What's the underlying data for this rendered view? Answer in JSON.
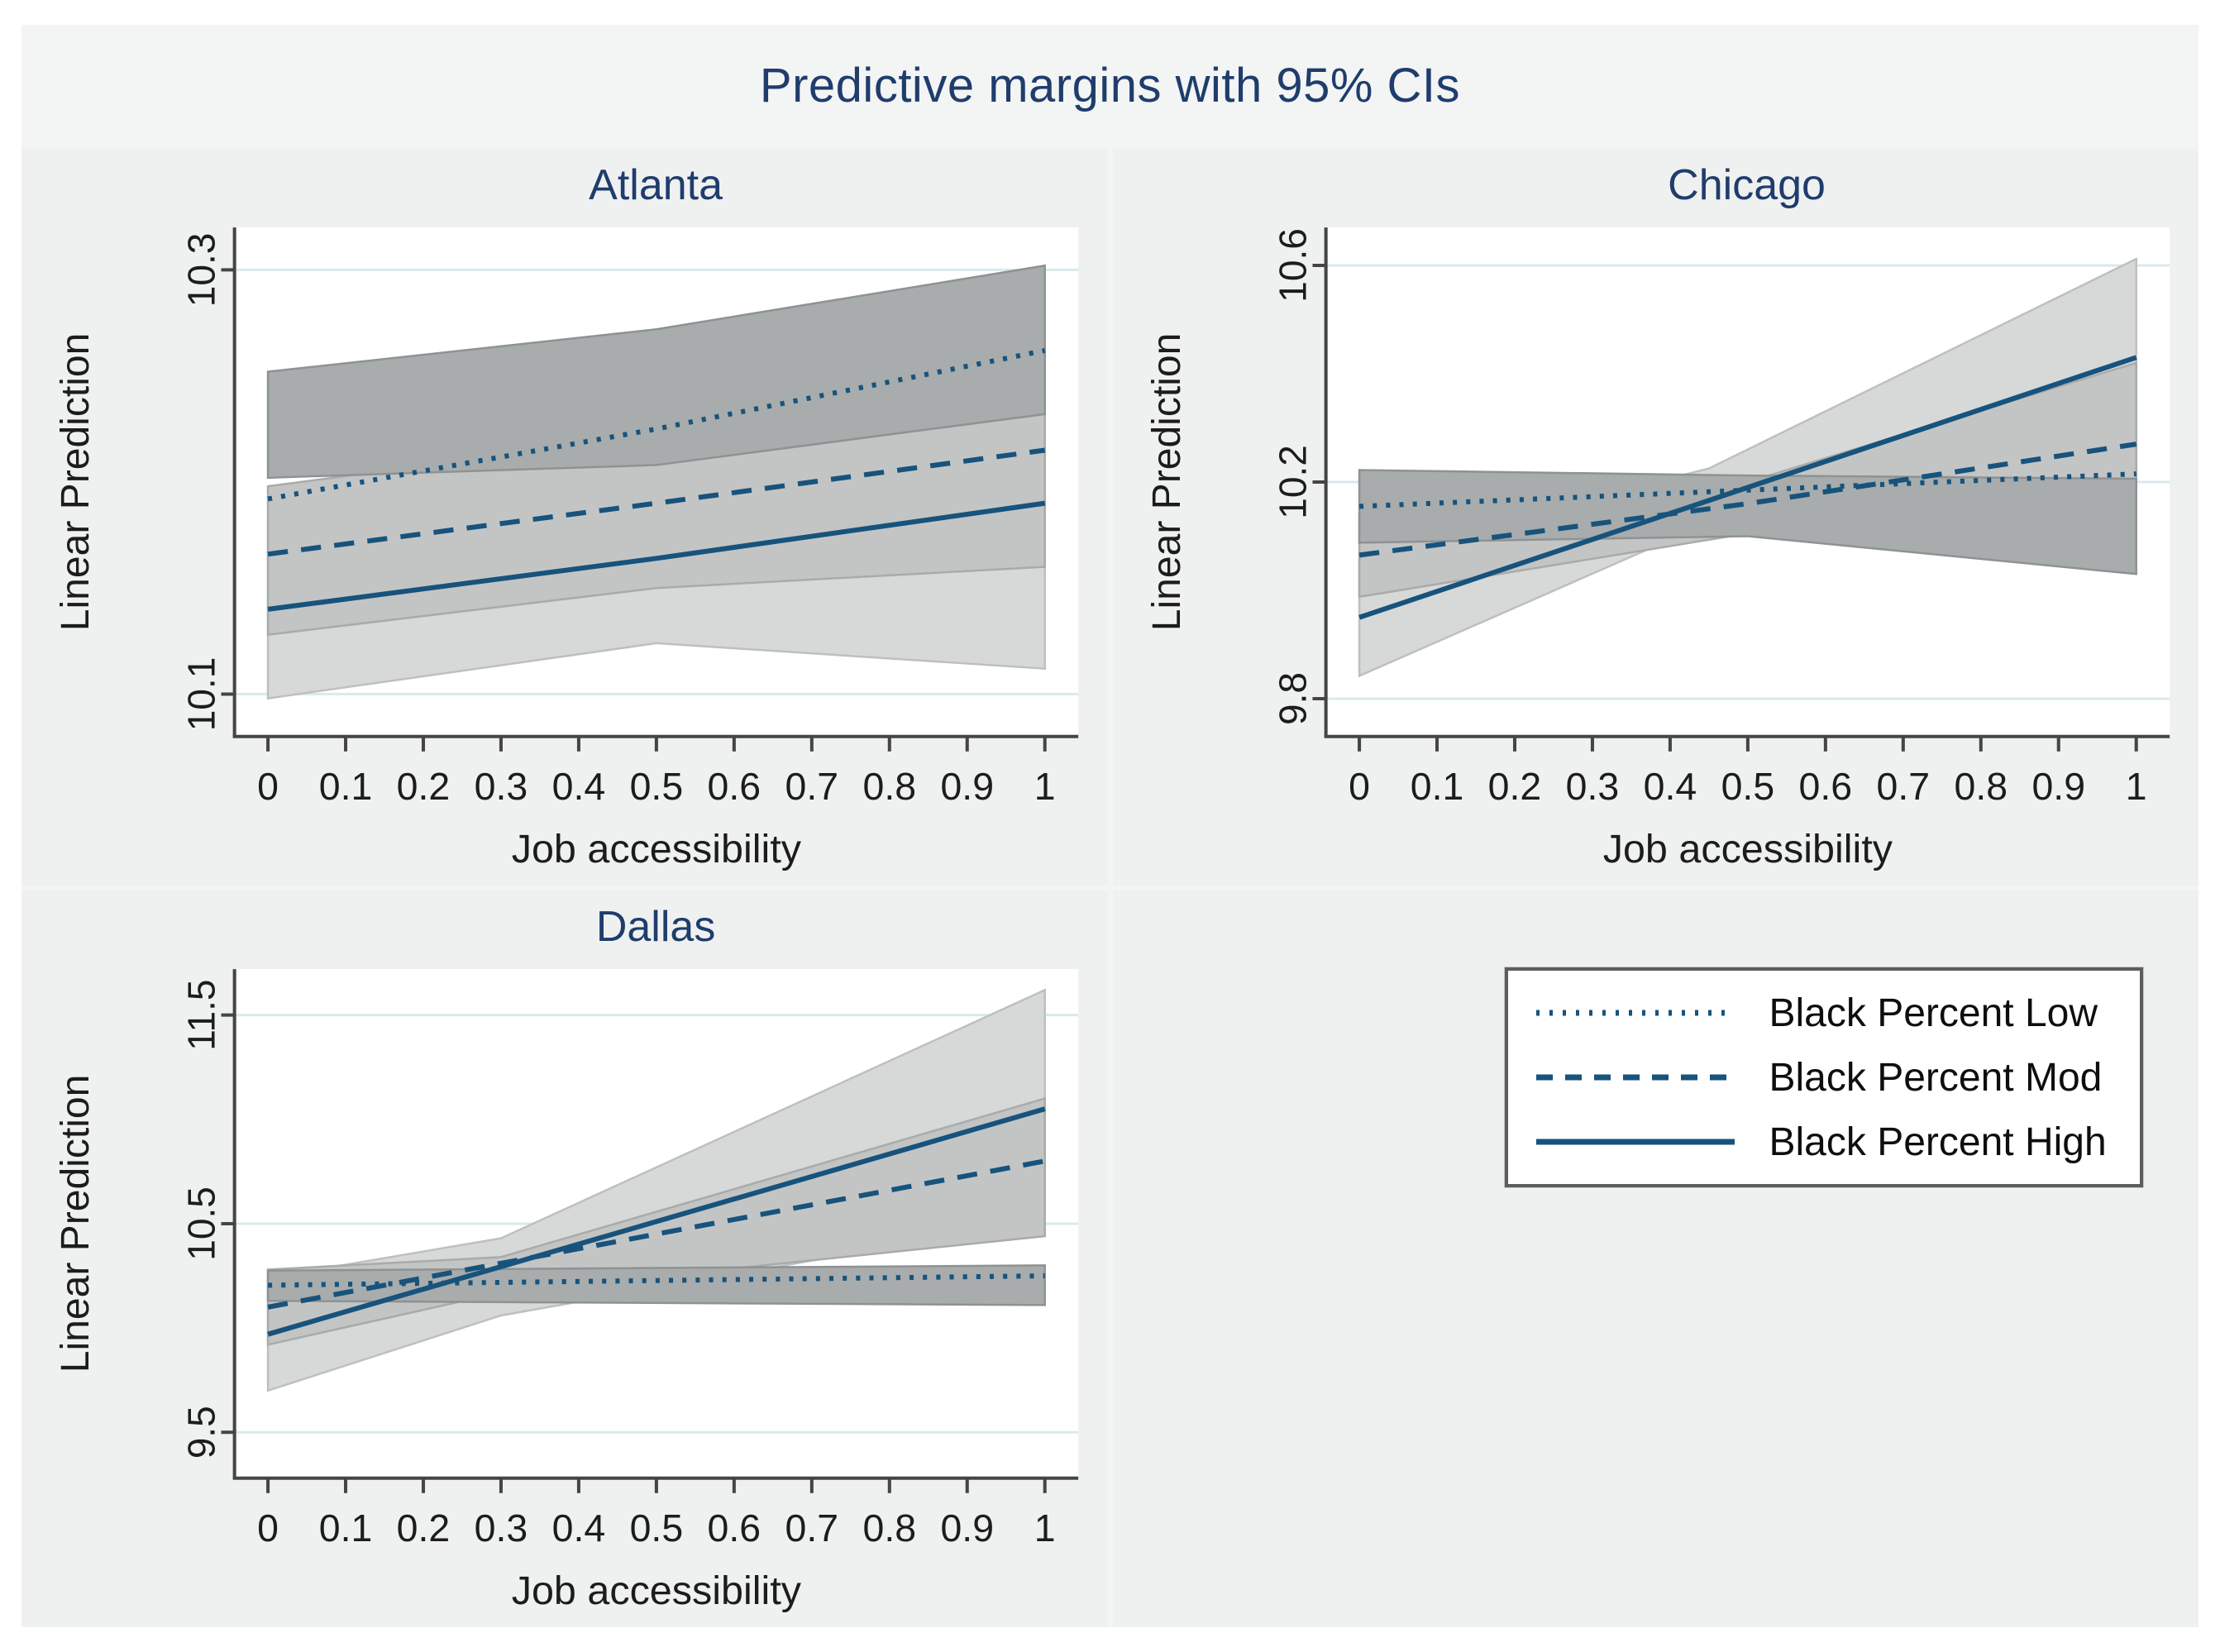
{
  "figure": {
    "title": "Predictive margins with 95% CIs"
  },
  "colors": {
    "line": "#17537c",
    "grid": "#d8eaec",
    "axis": "#454545",
    "tick_text": "#1c1c1c",
    "title_navy": "#1f3d6c",
    "plot_bg": "#ffffff",
    "panel_bg": "#eff1f1",
    "band_fill": {
      "dotted": "#a8acac",
      "dashed": "#c3c5c5",
      "solid": "#d7d9d9"
    },
    "band_edge": {
      "dotted": "#8e9292",
      "dashed": "#a9abab",
      "solid": "#bec0c0"
    }
  },
  "legend": {
    "items": [
      {
        "label": "Black Percent Low",
        "style": "dotted"
      },
      {
        "label": "Black Percent Mod",
        "style": "dashed"
      },
      {
        "label": "Black Percent High",
        "style": "solid"
      }
    ]
  },
  "chart_data": [
    {
      "type": "line",
      "title": "Atlanta",
      "xlabel": "Job accessibility",
      "ylabel": "Linear Prediction",
      "x_ticks": [
        0,
        0.1,
        0.2,
        0.3,
        0.4,
        0.5,
        0.6,
        0.7,
        0.8,
        0.9,
        1
      ],
      "xlim": [
        0,
        1
      ],
      "ylim": [
        10.08,
        10.32
      ],
      "y_ticks": [
        10.1,
        10.3
      ],
      "grid": true,
      "series": [
        {
          "name": "Black Percent Low",
          "style": "dotted",
          "x": [
            0,
            0.5,
            1
          ],
          "y": [
            10.192,
            10.225,
            10.262
          ]
        },
        {
          "name": "Black Percent Mod",
          "style": "dashed",
          "x": [
            0,
            0.5,
            1
          ],
          "y": [
            10.166,
            10.19,
            10.215
          ]
        },
        {
          "name": "Black Percent High",
          "style": "solid",
          "x": [
            0,
            0.5,
            1
          ],
          "y": [
            10.14,
            10.164,
            10.19
          ]
        }
      ],
      "bands": [
        {
          "series": "Black Percent Low",
          "style": "dotted",
          "x": [
            0,
            0.5,
            1
          ],
          "upper": [
            10.252,
            10.272,
            10.302
          ],
          "lower": [
            10.202,
            10.208,
            10.232
          ]
        },
        {
          "series": "Black Percent Mod",
          "style": "dashed",
          "x": [
            0,
            0.5,
            1
          ],
          "upper": [
            10.198,
            10.222,
            10.266
          ],
          "lower": [
            10.128,
            10.15,
            10.16
          ]
        },
        {
          "series": "Black Percent High",
          "style": "solid",
          "x": [
            0,
            0.5,
            1
          ],
          "upper": [
            10.182,
            10.202,
            10.252
          ],
          "lower": [
            10.098,
            10.124,
            10.112
          ]
        }
      ]
    },
    {
      "type": "line",
      "title": "Chicago",
      "xlabel": "Job accessibility",
      "ylabel": "Linear Prediction",
      "x_ticks": [
        0,
        0.1,
        0.2,
        0.3,
        0.4,
        0.5,
        0.6,
        0.7,
        0.8,
        0.9,
        1
      ],
      "xlim": [
        0,
        1
      ],
      "ylim": [
        9.73,
        10.67
      ],
      "y_ticks": [
        9.8,
        10.2,
        10.6
      ],
      "grid": true,
      "series": [
        {
          "name": "Black Percent Low",
          "style": "dotted",
          "x": [
            0,
            0.5,
            1
          ],
          "y": [
            10.155,
            10.185,
            10.215
          ]
        },
        {
          "name": "Black Percent Mod",
          "style": "dashed",
          "x": [
            0,
            0.5,
            1
          ],
          "y": [
            10.065,
            10.16,
            10.27
          ]
        },
        {
          "name": "Black Percent High",
          "style": "solid",
          "x": [
            0,
            0.5,
            1
          ],
          "y": [
            9.95,
            10.19,
            10.43
          ]
        }
      ],
      "bands": [
        {
          "series": "Black Percent Low",
          "style": "dotted",
          "x": [
            0,
            0.5,
            1
          ],
          "upper": [
            10.222,
            10.212,
            10.206
          ],
          "lower": [
            10.088,
            10.1,
            10.03
          ]
        },
        {
          "series": "Black Percent Mod",
          "style": "dashed",
          "x": [
            0,
            0.5,
            1
          ],
          "upper": [
            10.142,
            10.2,
            10.42
          ],
          "lower": [
            9.988,
            10.105,
            10.125
          ]
        },
        {
          "series": "Black Percent High",
          "style": "solid",
          "x": [
            0,
            0.45,
            1
          ],
          "upper": [
            10.062,
            10.225,
            10.612
          ],
          "lower": [
            9.842,
            10.125,
            10.252
          ]
        }
      ]
    },
    {
      "type": "line",
      "title": "Dallas",
      "xlabel": "Job accessibility",
      "ylabel": "Linear Prediction",
      "x_ticks": [
        0,
        0.1,
        0.2,
        0.3,
        0.4,
        0.5,
        0.6,
        0.7,
        0.8,
        0.9,
        1
      ],
      "xlim": [
        0,
        1
      ],
      "ylim": [
        9.28,
        11.72
      ],
      "y_ticks": [
        9.5,
        10.5,
        11.5
      ],
      "grid": true,
      "series": [
        {
          "name": "Black Percent Low",
          "style": "dotted",
          "x": [
            0,
            1
          ],
          "y": [
            10.205,
            10.25
          ]
        },
        {
          "name": "Black Percent Mod",
          "style": "dashed",
          "x": [
            0,
            1
          ],
          "y": [
            10.1,
            10.8
          ]
        },
        {
          "name": "Black Percent High",
          "style": "solid",
          "x": [
            0,
            1
          ],
          "y": [
            9.97,
            11.05
          ]
        }
      ],
      "bands": [
        {
          "series": "Black Percent Low",
          "style": "dotted",
          "x": [
            0,
            1
          ],
          "upper": [
            10.275,
            10.3
          ],
          "lower": [
            10.13,
            10.11
          ]
        },
        {
          "series": "Black Percent Mod",
          "style": "dashed",
          "x": [
            0,
            0.3,
            1
          ],
          "upper": [
            10.28,
            10.34,
            11.1
          ],
          "lower": [
            9.92,
            10.17,
            10.44
          ]
        },
        {
          "series": "Black Percent High",
          "style": "solid",
          "x": [
            0,
            0.3,
            1
          ],
          "upper": [
            10.24,
            10.43,
            11.62
          ],
          "lower": [
            9.7,
            10.06,
            10.52
          ]
        }
      ]
    }
  ]
}
